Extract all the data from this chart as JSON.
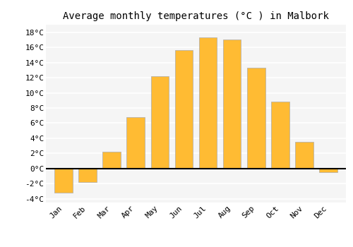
{
  "title": "Average monthly temperatures (°C ) in Malbork",
  "months": [
    "Jan",
    "Feb",
    "Mar",
    "Apr",
    "May",
    "Jun",
    "Jul",
    "Aug",
    "Sep",
    "Oct",
    "Nov",
    "Dec"
  ],
  "values": [
    -3.2,
    -1.8,
    2.2,
    6.8,
    12.2,
    15.6,
    17.3,
    17.0,
    13.3,
    8.8,
    3.5,
    -0.5
  ],
  "bar_color": "#FFBB33",
  "bar_edge_color": "#AAAAAA",
  "ylim": [
    -4.5,
    19
  ],
  "yticks": [
    -4,
    -2,
    0,
    2,
    4,
    6,
    8,
    10,
    12,
    14,
    16,
    18
  ],
  "ytick_labels": [
    "-4°C",
    "-2°C",
    "0°C",
    "2°C",
    "4°C",
    "6°C",
    "8°C",
    "10°C",
    "12°C",
    "14°C",
    "16°C",
    "18°C"
  ],
  "figure_bg": "#FFFFFF",
  "plot_bg": "#F5F5F5",
  "grid_color": "#FFFFFF",
  "title_fontsize": 10,
  "tick_fontsize": 8,
  "zero_line_color": "#000000",
  "bar_width": 0.75
}
